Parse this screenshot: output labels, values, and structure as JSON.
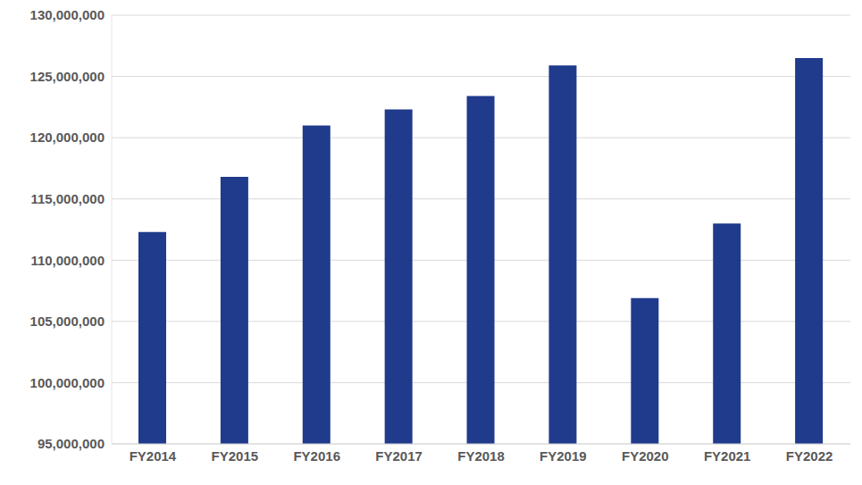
{
  "chart_data": {
    "type": "bar",
    "categories": [
      "FY2014",
      "FY2015",
      "FY2016",
      "FY2017",
      "FY2018",
      "FY2019",
      "FY2020",
      "FY2021",
      "FY2022"
    ],
    "values": [
      112300000,
      116800000,
      121000000,
      122300000,
      123400000,
      125900000,
      106900000,
      113000000,
      126500000
    ],
    "color": "#203a8c",
    "ylim": [
      95000000,
      130000000
    ],
    "yticks": [
      {
        "value": 95000000,
        "label": "95,000,000"
      },
      {
        "value": 100000000,
        "label": "100,000,000"
      },
      {
        "value": 105000000,
        "label": "105,000,000"
      },
      {
        "value": 110000000,
        "label": "110,000,000"
      },
      {
        "value": 115000000,
        "label": "115,000,000"
      },
      {
        "value": 120000000,
        "label": "120,000,000"
      },
      {
        "value": 125000000,
        "label": "125,000,000"
      },
      {
        "value": 130000000,
        "label": "130,000,000"
      }
    ],
    "grid": true
  }
}
